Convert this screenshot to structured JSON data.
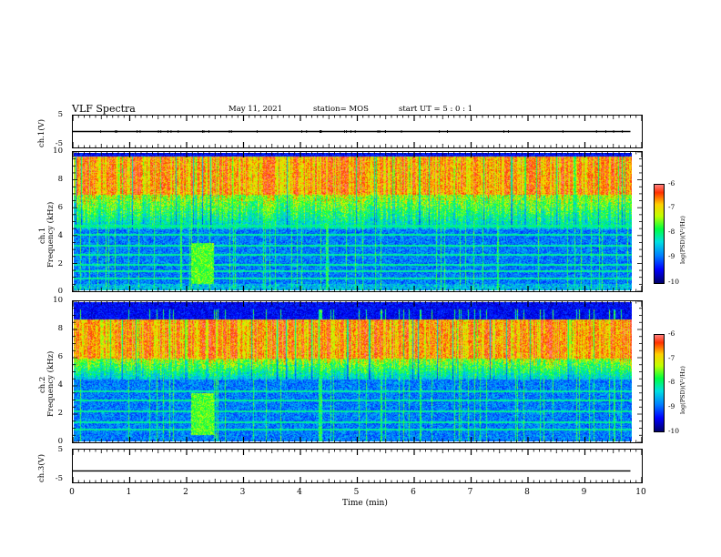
{
  "header": {
    "title": "VLF Spectra",
    "date": "May 11, 2021",
    "station": "station= MOS",
    "start": "start  UT =   5 : 0  : 1"
  },
  "axes": {
    "ch1_voltage_label": "ch.1(V)",
    "ch3_voltage_label": "ch.3(V)",
    "ch1_freq_label": "ch.1\nFrequency (kHz)",
    "ch1_label_line1": "ch.1",
    "ch2_label_line1": "ch.2",
    "freq_label": "Frequency (kHz)",
    "xlabel": "Time  (min)",
    "volt_ticks": [
      "5",
      "-5"
    ],
    "freq_ticks": [
      "10",
      "8",
      "6",
      "4",
      "2",
      "0"
    ],
    "x_ticks": [
      "0",
      "1",
      "2",
      "3",
      "4",
      "5",
      "6",
      "7",
      "8",
      "9",
      "10"
    ],
    "colorbar_label": "log(PSD)(V²/Hz)",
    "colorbar_ticks": [
      "-6",
      "-7",
      "-8",
      "-9",
      "-10"
    ]
  },
  "colors": {
    "background": "#000000",
    "trace": "#000000",
    "colormap": [
      "#00006a",
      "#0000ff",
      "#0080ff",
      "#00e0e0",
      "#00ff40",
      "#c0ff00",
      "#ffd000",
      "#ff3000",
      "#ff8080"
    ]
  },
  "chart_data": [
    {
      "type": "line",
      "panel": "ch.1 waveform",
      "xlabel": "Time  (min)",
      "ylabel": "ch.1(V)",
      "xlim": [
        0,
        10
      ],
      "ylim": [
        -5,
        5
      ],
      "series": [
        {
          "x": [
            0,
            9.8
          ],
          "values": [
            0,
            0
          ]
        }
      ]
    },
    {
      "type": "heatmap",
      "panel": "ch.1 spectrogram",
      "ylabel": "Frequency (kHz)",
      "xlim": [
        0,
        10
      ],
      "ylim": [
        0,
        10
      ],
      "data_end_min": 9.8,
      "colorbar": {
        "label": "log(PSD)(V²/Hz)",
        "range": [
          -10,
          -6
        ]
      },
      "intense_band_khz": [
        7,
        9.5
      ],
      "moderate_band_khz": [
        4.5,
        7
      ],
      "weak_band_khz": [
        0.5,
        4.5
      ],
      "broadband_burst_min": [
        2.05,
        2.45
      ],
      "narrowband_lines_khz": [
        0.9,
        1.4,
        1.9,
        2.6,
        3.3,
        4.1,
        4.7
      ]
    },
    {
      "type": "heatmap",
      "panel": "ch.2 spectrogram",
      "ylabel": "Frequency (kHz)",
      "xlim": [
        0,
        10
      ],
      "ylim": [
        0,
        10
      ],
      "data_end_min": 9.8,
      "colorbar": {
        "label": "log(PSD)(V²/Hz)",
        "range": [
          -10,
          -6
        ]
      },
      "intense_band_khz": [
        6,
        8.5
      ],
      "moderate_band_khz": [
        4.5,
        6
      ],
      "weak_band_khz": [
        0,
        4.5
      ],
      "broadband_burst_min": [
        2.05,
        2.45
      ],
      "narrowband_lines_khz": [
        0.9,
        1.4,
        2.2,
        3.0,
        3.6
      ]
    },
    {
      "type": "line",
      "panel": "ch.3 waveform",
      "xlabel": "Time  (min)",
      "ylabel": "ch.3(V)",
      "xlim": [
        0,
        10
      ],
      "ylim": [
        -5,
        5
      ],
      "series": [
        {
          "x": [
            0,
            9.8
          ],
          "values": [
            -1.5,
            -1.5
          ]
        }
      ]
    }
  ]
}
